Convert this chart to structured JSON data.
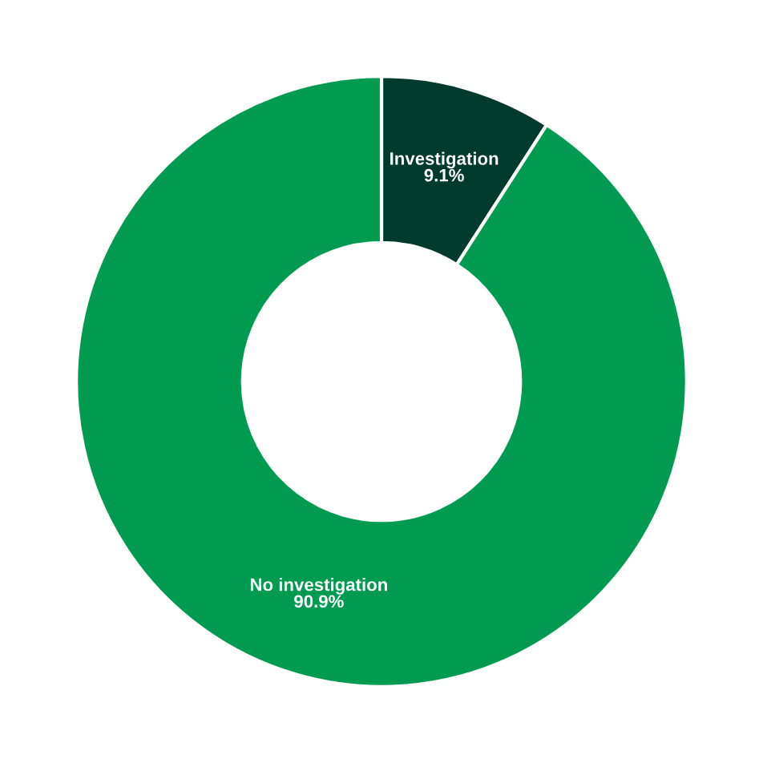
{
  "chart_data": {
    "type": "donut",
    "categories": [
      "Investigation",
      "No investigation"
    ],
    "values": [
      9.1,
      90.9
    ],
    "colors": [
      "#003a2c",
      "#009b50"
    ],
    "value_labels": [
      "9.1%",
      "90.9%"
    ]
  }
}
